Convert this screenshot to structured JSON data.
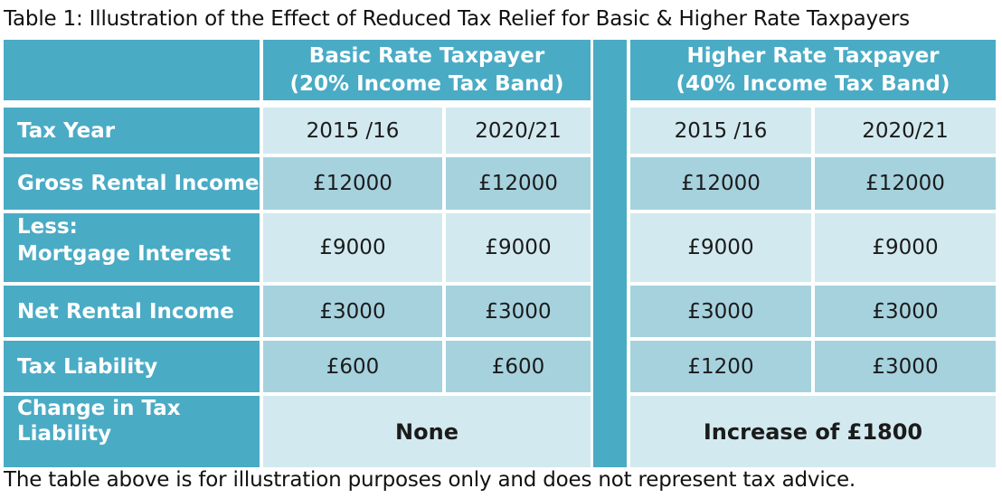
{
  "caption": "Table 1: Illustration of the Effect of Reduced Tax Relief for Basic & Higher Rate Taxpayers",
  "footnote": "The table above is for illustration purposes only and does not represent tax advice.",
  "headers": {
    "basic_line1": "Basic Rate Taxpayer",
    "basic_line2": "(20% Income Tax Band)",
    "higher_line1": "Higher Rate Taxpayer",
    "higher_line2": "(40% Income Tax Band)"
  },
  "rows": [
    {
      "label": "Tax Year",
      "values": [
        "2015 /16",
        "2020/21",
        "2015 /16",
        "2020/21"
      ]
    },
    {
      "label": "Gross Rental Income",
      "values": [
        "£12000",
        "£12000",
        "£12000",
        "£12000"
      ]
    },
    {
      "label_line1": "Less:",
      "label_line2": "Mortgage Interest",
      "values": [
        "£9000",
        "£9000",
        "£9000",
        "£9000"
      ]
    },
    {
      "label": "Net Rental Income",
      "values": [
        "£3000",
        "£3000",
        "£3000",
        "£3000"
      ]
    },
    {
      "label": "Tax Liability",
      "values": [
        "£600",
        "£600",
        "£1200",
        "£3000"
      ]
    },
    {
      "label_line1": "Change in Tax",
      "label_line2": "Liability",
      "basic": "None",
      "higher": "Increase of £1800"
    }
  ]
}
